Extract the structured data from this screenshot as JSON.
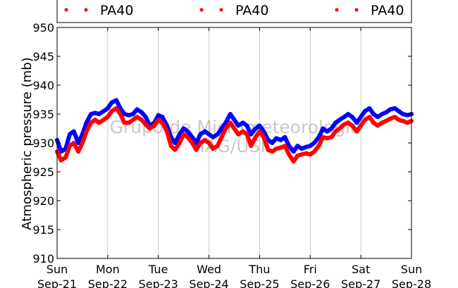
{
  "chart_data": {
    "type": "line",
    "ylabel": "Atmospheric pressure (mb)",
    "ylim": [
      910,
      950
    ],
    "yticks": [
      "910",
      "915",
      "920",
      "925",
      "930",
      "935",
      "940",
      "945",
      "950"
    ],
    "xlim": [
      0,
      7
    ],
    "xticks": [
      {
        "day": "Sun",
        "date": "Sep-21"
      },
      {
        "day": "Mon",
        "date": "Sep-22"
      },
      {
        "day": "Tue",
        "date": "Sep-23"
      },
      {
        "day": "Wed",
        "date": "Sep-24"
      },
      {
        "day": "Thu",
        "date": "Sep-25"
      },
      {
        "day": "Fri",
        "date": "Sep-26"
      },
      {
        "day": "Sat",
        "date": "Sep-27"
      },
      {
        "day": "Sun",
        "date": "Sep-28"
      }
    ],
    "grid": "vertical",
    "legend": {
      "placement": "top",
      "entries": [
        {
          "label": "PA40",
          "color": "#ff0000"
        },
        {
          "label": "PA40",
          "color": "#ff0000"
        },
        {
          "label": "PA40",
          "color": "#ff0000"
        }
      ]
    },
    "watermark": [
      "Grupo de Micrometeorologia",
      "IAG/USP"
    ],
    "series": [
      {
        "color": "#0000ff",
        "x": [
          0,
          0.08,
          0.17,
          0.25,
          0.33,
          0.42,
          0.5,
          0.58,
          0.67,
          0.75,
          0.83,
          0.92,
          1.0,
          1.08,
          1.17,
          1.25,
          1.33,
          1.42,
          1.5,
          1.58,
          1.67,
          1.75,
          1.83,
          1.92,
          2.0,
          2.08,
          2.17,
          2.25,
          2.33,
          2.42,
          2.5,
          2.58,
          2.67,
          2.75,
          2.83,
          2.92,
          3.0,
          3.08,
          3.17,
          3.25,
          3.33,
          3.42,
          3.5,
          3.58,
          3.67,
          3.75,
          3.83,
          3.92,
          4.0,
          4.08,
          4.17,
          4.25,
          4.33,
          4.42,
          4.5,
          4.58,
          4.67,
          4.75,
          4.83,
          4.92,
          5.0,
          5.08,
          5.17,
          5.25,
          5.33,
          5.42,
          5.5,
          5.58,
          5.67,
          5.75,
          5.83,
          5.92,
          6.0,
          6.08,
          6.17,
          6.25,
          6.33,
          6.42,
          6.5,
          6.58,
          6.67,
          6.75,
          6.83,
          6.92,
          7.0
        ],
        "y": [
          930.5,
          928.5,
          929.0,
          931.5,
          932.0,
          930.0,
          931.5,
          933.5,
          935.0,
          935.2,
          935.0,
          935.5,
          936.0,
          937.0,
          937.4,
          936.0,
          935.0,
          934.8,
          935.0,
          935.8,
          935.3,
          934.5,
          933.0,
          933.5,
          934.8,
          934.5,
          933.0,
          931.0,
          930.0,
          931.5,
          932.5,
          932.0,
          931.0,
          930.0,
          931.5,
          932.0,
          931.5,
          931.0,
          931.5,
          932.5,
          933.5,
          935.0,
          934.0,
          933.0,
          933.5,
          933.0,
          931.5,
          932.5,
          933.0,
          932.0,
          930.5,
          930.0,
          930.8,
          930.5,
          931.0,
          929.5,
          928.5,
          929.5,
          929.0,
          929.3,
          929.5,
          930.0,
          931.0,
          932.5,
          932.0,
          932.5,
          933.5,
          934.0,
          934.5,
          935.0,
          934.5,
          933.5,
          934.5,
          935.5,
          936.0,
          935.0,
          934.5,
          935.0,
          935.3,
          935.8,
          936.0,
          935.5,
          935.0,
          934.8,
          935.0
        ]
      },
      {
        "color": "#ff0000",
        "x": [
          0,
          0.08,
          0.17,
          0.25,
          0.33,
          0.42,
          0.5,
          0.58,
          0.67,
          0.75,
          0.83,
          0.92,
          1.0,
          1.08,
          1.17,
          1.25,
          1.33,
          1.42,
          1.5,
          1.58,
          1.67,
          1.75,
          1.83,
          1.92,
          2.0,
          2.08,
          2.17,
          2.25,
          2.33,
          2.42,
          2.5,
          2.58,
          2.67,
          2.75,
          2.83,
          2.92,
          3.0,
          3.08,
          3.17,
          3.25,
          3.33,
          3.42,
          3.5,
          3.58,
          3.67,
          3.75,
          3.83,
          3.92,
          4.0,
          4.08,
          4.17,
          4.25,
          4.33,
          4.42,
          4.5,
          4.58,
          4.67,
          4.75,
          4.83,
          4.92,
          5.0,
          5.08,
          5.17,
          5.25,
          5.33,
          5.42,
          5.5,
          5.58,
          5.67,
          5.75,
          5.83,
          5.92,
          6.0,
          6.08,
          6.17,
          6.25,
          6.33,
          6.42,
          6.5,
          6.58,
          6.67,
          6.75,
          6.83,
          6.92,
          7.0
        ],
        "y": [
          928.5,
          927.0,
          927.5,
          929.5,
          930.0,
          928.5,
          930.0,
          932.0,
          933.5,
          934.0,
          933.5,
          934.0,
          934.5,
          935.5,
          936.0,
          935.0,
          933.5,
          933.5,
          934.0,
          934.5,
          934.0,
          933.2,
          932.5,
          933.0,
          934.0,
          933.5,
          932.0,
          929.5,
          928.8,
          930.0,
          931.5,
          931.0,
          930.0,
          928.8,
          930.0,
          930.5,
          930.0,
          929.0,
          929.5,
          931.0,
          932.5,
          933.5,
          932.5,
          931.5,
          932.0,
          931.5,
          929.5,
          931.0,
          932.0,
          931.0,
          928.8,
          928.5,
          929.0,
          929.2,
          929.5,
          928.0,
          926.8,
          927.8,
          928.0,
          928.2,
          928.0,
          928.5,
          929.5,
          931.0,
          930.8,
          931.0,
          932.0,
          932.5,
          933.2,
          933.5,
          933.0,
          932.0,
          933.0,
          934.0,
          934.5,
          933.5,
          933.0,
          933.5,
          933.8,
          934.2,
          934.5,
          934.0,
          933.8,
          933.5,
          933.8
        ]
      }
    ]
  }
}
